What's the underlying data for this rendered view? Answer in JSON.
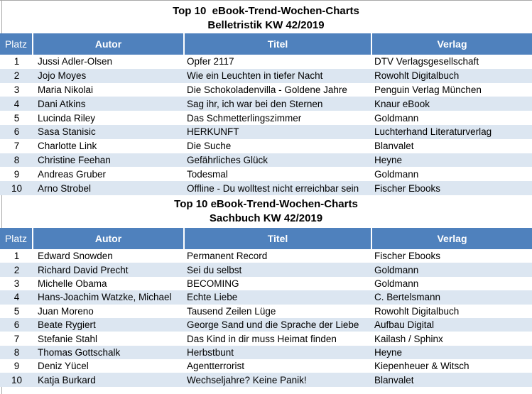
{
  "colors": {
    "header_bg": "#4F81BD",
    "header_text": "#FFFFFF",
    "stripe_bg": "#DCE6F1",
    "gridline": "#A8A8A8"
  },
  "sections": [
    {
      "title_line1": "Top 10  eBook-Trend-Wochen-Charts",
      "title_line2": "Belletristik KW 42/2019",
      "columns": [
        "Platz",
        "Autor",
        "Titel",
        "Verlag"
      ],
      "rows": [
        {
          "platz": "1",
          "autor": "Jussi Adler-Olsen",
          "titel": "Opfer 2117",
          "verlag": "DTV Verlagsgesellschaft"
        },
        {
          "platz": "2",
          "autor": "Jojo Moyes",
          "titel": "Wie ein Leuchten in tiefer Nacht",
          "verlag": "Rowohlt Digitalbuch"
        },
        {
          "platz": "3",
          "autor": "Maria Nikolai",
          "titel": "Die Schokoladenvilla - Goldene Jahre",
          "verlag": "Penguin Verlag München"
        },
        {
          "platz": "4",
          "autor": "Dani Atkins",
          "titel": "Sag ihr, ich war bei den Sternen",
          "verlag": "Knaur eBook"
        },
        {
          "platz": "5",
          "autor": "Lucinda Riley",
          "titel": "Das Schmetterlingszimmer",
          "verlag": "Goldmann"
        },
        {
          "platz": "6",
          "autor": "Sasa Stanisic",
          "titel": "HERKUNFT",
          "verlag": "Luchterhand Literaturverlag"
        },
        {
          "platz": "7",
          "autor": "Charlotte Link",
          "titel": "Die Suche",
          "verlag": "Blanvalet"
        },
        {
          "platz": "8",
          "autor": "Christine Feehan",
          "titel": "Gefährliches Glück",
          "verlag": "Heyne"
        },
        {
          "platz": "9",
          "autor": "Andreas Gruber",
          "titel": "Todesmal",
          "verlag": "Goldmann"
        },
        {
          "platz": "10",
          "autor": "Arno Strobel",
          "titel": "Offline - Du wolltest nicht erreichbar sein",
          "verlag": "Fischer Ebooks"
        }
      ]
    },
    {
      "title_line1": "Top 10 eBook-Trend-Wochen-Charts",
      "title_line2": "Sachbuch KW 42/2019",
      "columns": [
        "Platz",
        "Autor",
        "Titel",
        "Verlag"
      ],
      "rows": [
        {
          "platz": "1",
          "autor": "Edward Snowden",
          "titel": "Permanent Record",
          "verlag": "Fischer Ebooks"
        },
        {
          "platz": "2",
          "autor": "Richard David Precht",
          "titel": "Sei du selbst",
          "verlag": "Goldmann"
        },
        {
          "platz": "3",
          "autor": "Michelle Obama",
          "titel": "BECOMING",
          "verlag": "Goldmann"
        },
        {
          "platz": "4",
          "autor": "Hans-Joachim Watzke, Michael",
          "titel": "Echte Liebe",
          "verlag": "C. Bertelsmann"
        },
        {
          "platz": "5",
          "autor": "Juan Moreno",
          "titel": "Tausend Zeilen Lüge",
          "verlag": "Rowohlt Digitalbuch"
        },
        {
          "platz": "6",
          "autor": "Beate Rygiert",
          "titel": "George Sand und die Sprache der Liebe",
          "verlag": "Aufbau Digital"
        },
        {
          "platz": "7",
          "autor": "Stefanie Stahl",
          "titel": "Das Kind in dir muss Heimat finden",
          "verlag": "Kailash / Sphinx"
        },
        {
          "platz": "8",
          "autor": "Thomas Gottschalk",
          "titel": "Herbstbunt",
          "verlag": "Heyne"
        },
        {
          "platz": "9",
          "autor": "Deniz Yücel",
          "titel": "Agentterrorist",
          "verlag": "Kiepenheuer & Witsch"
        },
        {
          "platz": "10",
          "autor": "Katja Burkard",
          "titel": "Wechseljahre? Keine Panik!",
          "verlag": "Blanvalet"
        }
      ]
    }
  ]
}
